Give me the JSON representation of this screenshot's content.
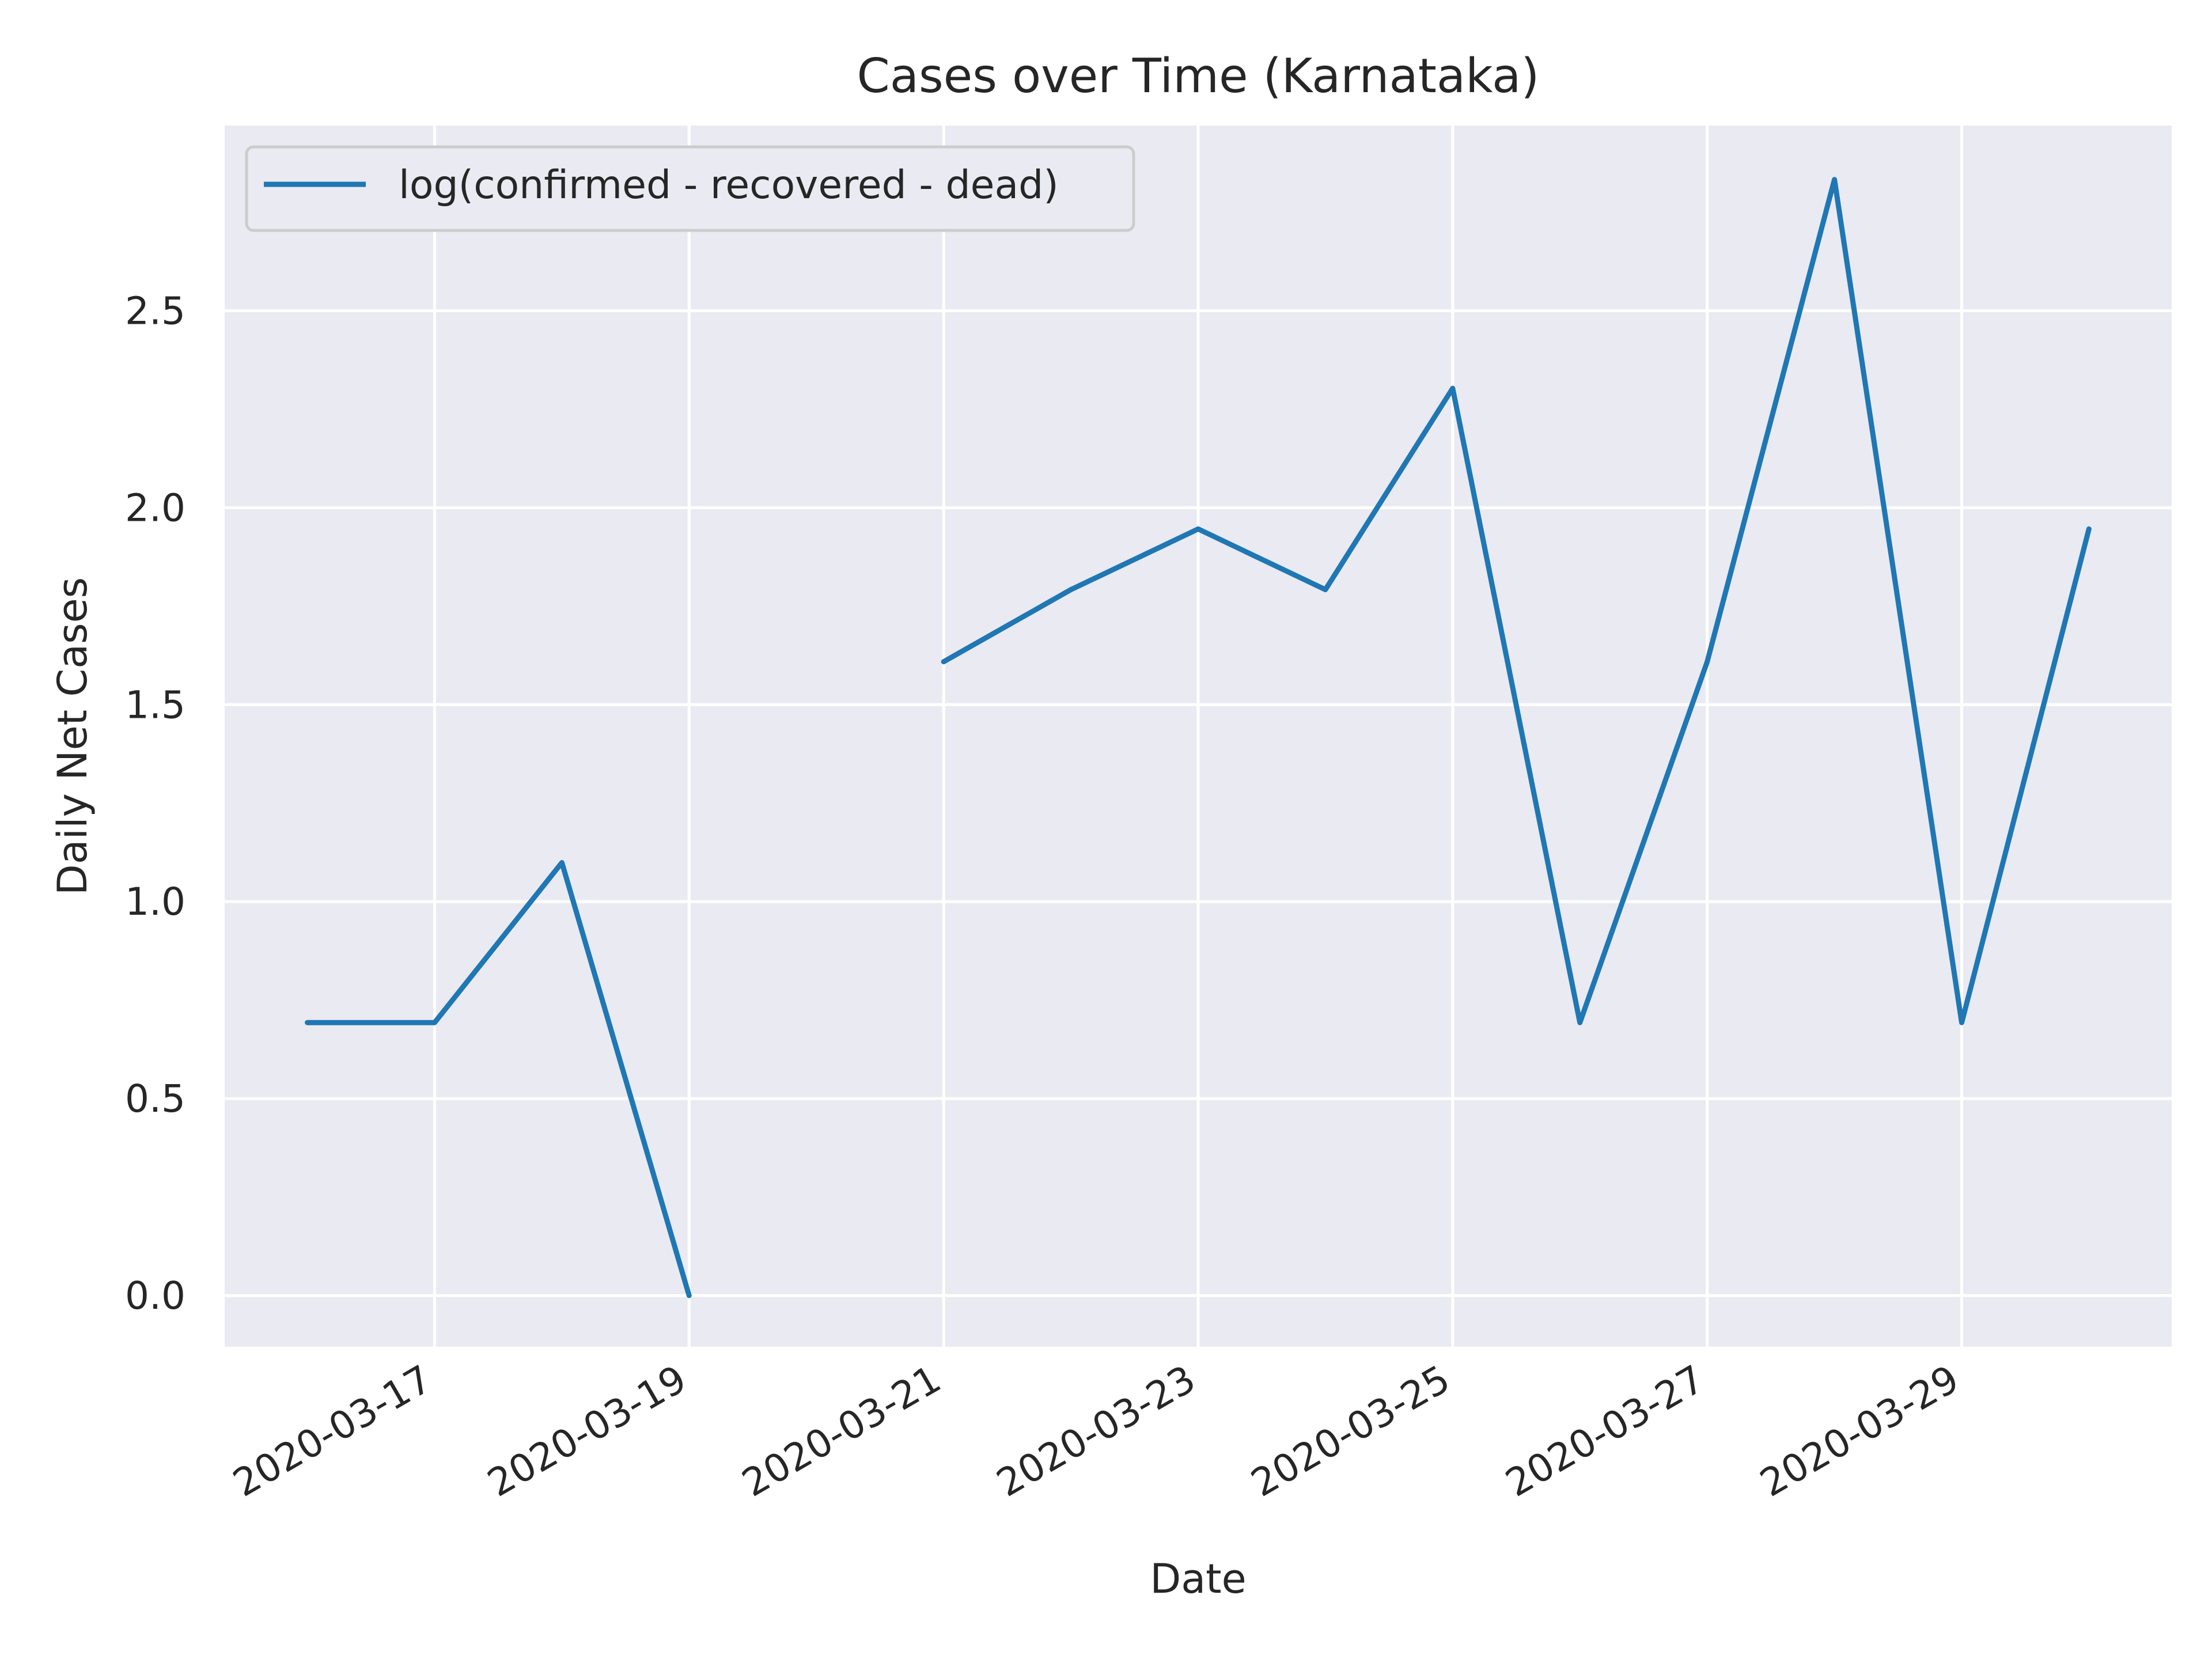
{
  "chart_data": {
    "type": "line",
    "title": "Cases over Time (Karnataka)",
    "xlabel": "Date",
    "ylabel": "Daily Net Cases",
    "x": [
      "2020-03-16",
      "2020-03-17",
      "2020-03-18",
      "2020-03-19",
      "2020-03-20",
      "2020-03-21",
      "2020-03-22",
      "2020-03-23",
      "2020-03-24",
      "2020-03-25",
      "2020-03-26",
      "2020-03-27",
      "2020-03-28",
      "2020-03-29",
      "2020-03-30"
    ],
    "series": [
      {
        "name": "log(confirmed - recovered - dead)",
        "color": "#1f77b4",
        "values": [
          0.693,
          0.693,
          1.099,
          0.0,
          null,
          1.609,
          1.792,
          1.946,
          1.792,
          2.303,
          0.693,
          1.609,
          2.833,
          0.693,
          1.946
        ]
      }
    ],
    "xticks": [
      "2020-03-17",
      "2020-03-19",
      "2020-03-21",
      "2020-03-23",
      "2020-03-25",
      "2020-03-27",
      "2020-03-29"
    ],
    "yticks": [
      0.0,
      0.5,
      1.0,
      1.5,
      2.0,
      2.5
    ],
    "ytick_labels": [
      "0.0",
      "0.5",
      "1.0",
      "1.5",
      "2.0",
      "2.5"
    ],
    "ylim": [
      -0.13,
      2.97
    ],
    "xlim": [
      "2020-03-15T08:24",
      "2020-03-30T15:36"
    ],
    "grid": true,
    "legend_position": "top-left",
    "background_color": "#eaeaf2",
    "grid_color": "#ffffff"
  }
}
